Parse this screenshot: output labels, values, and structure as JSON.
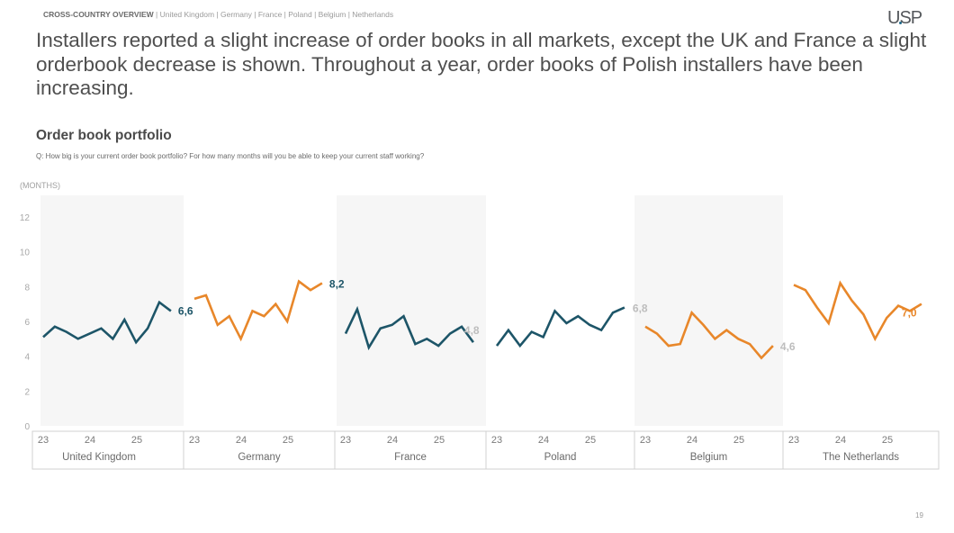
{
  "header": {
    "breadcrumb_lead": "CROSS-COUNTRY OVERVIEW",
    "breadcrumb_rest": " | United Kingdom | Germany | France | Poland | Belgium | Netherlands",
    "logo": "USP"
  },
  "headline": "Installers reported a slight increase of order books in all markets, except the UK and France a slight orderbook decrease is shown. Throughout a year, order books of Polish installers have been increasing.",
  "section": {
    "title": "Order book portfolio",
    "question": "Q: How big is your current order book portfolio? For how many months will you be able to keep your current staff working?"
  },
  "footer": {
    "page_number": "19"
  },
  "colors": {
    "dark_teal": "#1d5568",
    "orange": "#e8872a",
    "band": "#f6f6f6",
    "muted_label": "#b8b8b8"
  },
  "chart_data": {
    "type": "line",
    "title": "Order book portfolio",
    "ylabel": "(MONTHS)",
    "ylim": [
      0,
      12
    ],
    "yticks": [
      0,
      2,
      4,
      6,
      8,
      10,
      12
    ],
    "grid": false,
    "x_tick_labels": [
      "23",
      "24",
      "25"
    ],
    "series": [
      {
        "name": "United Kingdom",
        "color": "#1d5568",
        "shaded": true,
        "label": "6,6",
        "label_color": "#1d5568",
        "values": [
          5.1,
          5.7,
          5.4,
          5.0,
          5.3,
          5.6,
          5.0,
          6.1,
          4.8,
          5.6,
          7.1,
          6.6
        ]
      },
      {
        "name": "Germany",
        "color": "#e8872a",
        "shaded": false,
        "label": "8,2",
        "label_color": "#1d5568",
        "values": [
          7.3,
          7.5,
          5.8,
          6.3,
          5.0,
          6.6,
          6.3,
          7.0,
          6.0,
          8.3,
          7.8,
          8.2
        ]
      },
      {
        "name": "France",
        "color": "#1d5568",
        "shaded": true,
        "label": "4,8",
        "label_color": "#bdbdbd",
        "values": [
          5.3,
          6.7,
          4.5,
          5.6,
          5.8,
          6.3,
          4.7,
          5.0,
          4.6,
          5.3,
          5.7,
          4.8
        ]
      },
      {
        "name": "Poland",
        "color": "#1d5568",
        "shaded": false,
        "label": "6,8",
        "label_color": "#bdbdbd",
        "values": [
          4.6,
          5.5,
          4.6,
          5.4,
          5.1,
          6.6,
          5.9,
          6.3,
          5.8,
          5.5,
          6.5,
          6.8
        ]
      },
      {
        "name": "Belgium",
        "color": "#e8872a",
        "shaded": true,
        "label": "4,6",
        "label_color": "#bdbdbd",
        "values": [
          5.7,
          5.3,
          4.6,
          4.7,
          6.5,
          5.8,
          5.0,
          5.5,
          5.0,
          4.7,
          3.9,
          4.6
        ]
      },
      {
        "name": "The Netherlands",
        "color": "#e8872a",
        "shaded": false,
        "label": "7,0",
        "label_color": "#e8872a",
        "values": [
          8.1,
          7.8,
          6.8,
          5.9,
          8.2,
          7.2,
          6.4,
          5.0,
          6.2,
          6.9,
          6.6,
          7.0
        ]
      }
    ]
  }
}
